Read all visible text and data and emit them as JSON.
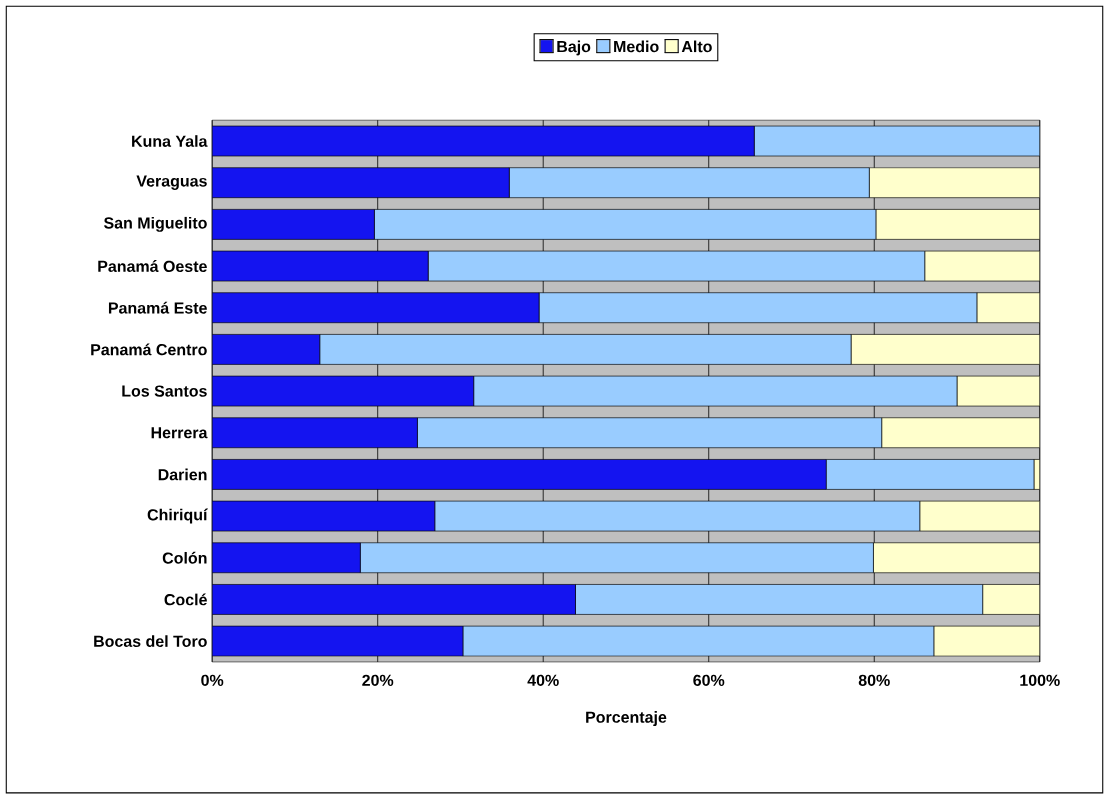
{
  "chart_data": {
    "type": "bar",
    "orientation": "horizontal",
    "stacked": true,
    "xlabel": "Porcentaje",
    "categories": [
      "Kuna Yala",
      "Veraguas",
      "San Miguelito",
      "Panamá Oeste",
      "Panamá Este",
      "Panamá Centro",
      "Los Santos",
      "Herrera",
      "Darien",
      "Chiriquí",
      "Colón",
      "Coclé",
      "Bocas del Toro"
    ],
    "series": [
      {
        "name": "Bajo",
        "color": "#1414f0",
        "values": [
          65.5,
          35.9,
          19.6,
          26.1,
          39.5,
          13.0,
          31.6,
          24.8,
          74.2,
          26.9,
          17.9,
          43.9,
          30.3
        ]
      },
      {
        "name": "Medio",
        "color": "#99ccff",
        "values": [
          34.5,
          43.5,
          60.6,
          60.0,
          52.9,
          64.2,
          58.4,
          56.1,
          25.1,
          58.6,
          62.0,
          49.2,
          56.9
        ]
      },
      {
        "name": "Alto",
        "color": "#ffffcc",
        "values": [
          0,
          20.6,
          19.8,
          13.9,
          7.6,
          22.8,
          10.0,
          19.1,
          0.7,
          14.5,
          20.1,
          6.9,
          12.8
        ]
      }
    ],
    "xlim": [
      0,
      100
    ],
    "xticks": [
      {
        "value": 0,
        "label": "0%"
      },
      {
        "value": 20,
        "label": "20%"
      },
      {
        "value": 40,
        "label": "40%"
      },
      {
        "value": 60,
        "label": "60%"
      },
      {
        "value": 80,
        "label": "80%"
      },
      {
        "value": 100,
        "label": "100%"
      }
    ],
    "grid": "x",
    "legend": "top"
  }
}
